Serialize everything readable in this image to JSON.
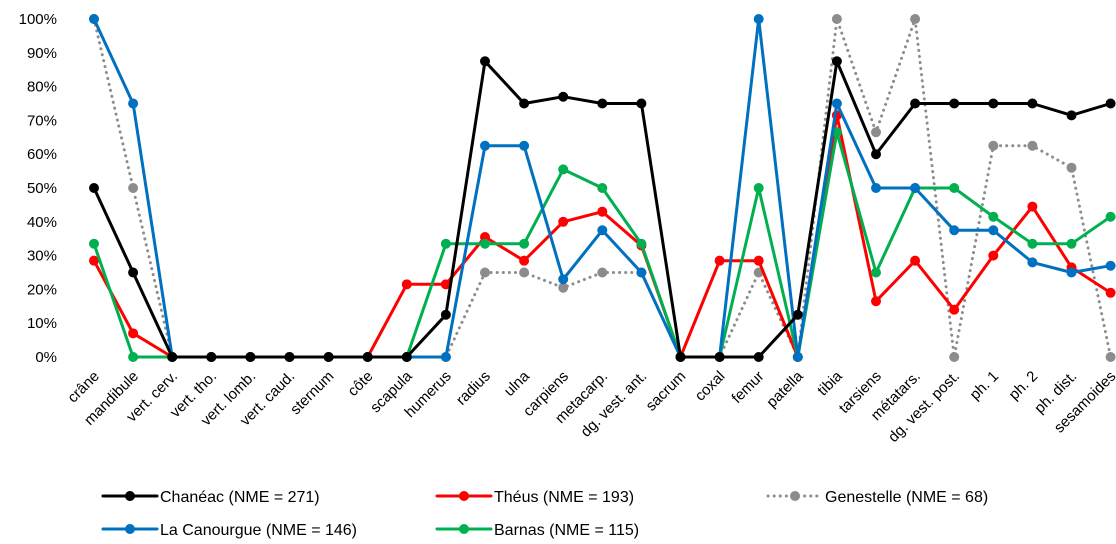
{
  "chart_data": {
    "type": "line",
    "categories": [
      "crâne",
      "mandibule",
      "vert. cerv.",
      "vert. tho.",
      "vert. lomb.",
      "vert. caud.",
      "sternum",
      "côte",
      "scapula",
      "humerus",
      "radius",
      "ulna",
      "carpiens",
      "metacarp.",
      "dg. vest. ant.",
      "sacrum",
      "coxal",
      "femur",
      "patella",
      "tibia",
      "tarsiens",
      "métatars.",
      "dg. vest. post.",
      "ph. 1",
      "ph. 2",
      "ph. dist.",
      "sesamoides"
    ],
    "ylim": [
      0,
      100
    ],
    "yticks": [
      "0%",
      "10%",
      "20%",
      "30%",
      "40%",
      "50%",
      "60%",
      "70%",
      "80%",
      "90%",
      "100%"
    ],
    "grid": false,
    "legend_position": "bottom",
    "series": [
      {
        "name": "Chanéac (NME = 271)",
        "color": "#000000",
        "style": "solid",
        "values": [
          50,
          25,
          0,
          0,
          0,
          0,
          0,
          0,
          0,
          12.5,
          87.5,
          75,
          77,
          75,
          75,
          0,
          0,
          0,
          12.5,
          87.5,
          60,
          75,
          75,
          75,
          75,
          71.5,
          75
        ]
      },
      {
        "name": "Théus (NME = 193)",
        "color": "#ff0000",
        "style": "solid",
        "values": [
          28.5,
          7,
          0,
          0,
          0,
          0,
          0,
          0,
          21.5,
          21.5,
          35.5,
          28.5,
          40,
          43,
          33,
          0,
          28.5,
          28.5,
          0,
          71.5,
          16.5,
          28.5,
          14,
          30,
          44.5,
          26.5,
          19
        ]
      },
      {
        "name": "Genestelle (NME = 68)",
        "color": "#8c8c8c",
        "style": "dotted",
        "values": [
          100,
          50,
          0,
          0,
          0,
          0,
          0,
          0,
          0,
          0,
          25,
          25,
          20.5,
          25,
          25,
          0,
          0,
          25,
          0,
          100,
          66.5,
          100,
          0,
          62.5,
          62.5,
          56,
          0
        ]
      },
      {
        "name": "La Canourgue (NME = 146)",
        "color": "#0070c0",
        "style": "solid",
        "values": [
          100,
          75,
          0,
          0,
          0,
          0,
          0,
          0,
          0,
          0,
          62.5,
          62.5,
          23,
          37.5,
          25,
          0,
          0,
          100,
          0,
          75,
          50,
          50,
          37.5,
          37.5,
          28,
          25,
          27
        ]
      },
      {
        "name": "Barnas (NME = 115)",
        "color": "#00b050",
        "style": "solid",
        "values": [
          33.5,
          0,
          0,
          0,
          0,
          0,
          0,
          0,
          0,
          33.5,
          33.5,
          33.5,
          55.5,
          50,
          33.5,
          0,
          0,
          50,
          0,
          66.5,
          25,
          50,
          50,
          41.5,
          33.5,
          33.5,
          41.5
        ]
      }
    ]
  }
}
